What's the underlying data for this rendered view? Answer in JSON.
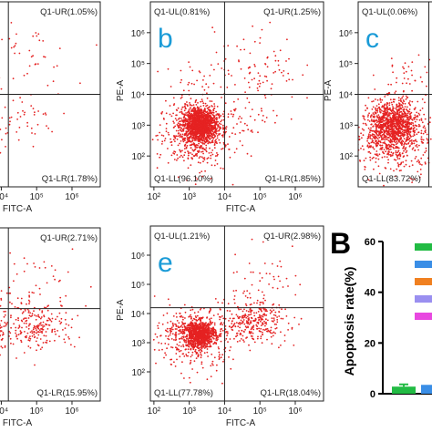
{
  "chart_data": [
    {
      "type": "flow",
      "x_label": "FITC-A",
      "quadrants": {
        "ur": "Q1-UR(1.05%)",
        "lr": "Q1-LR(1.78%)"
      },
      "xlim": [
        1.9,
        6.8
      ],
      "ylim": [
        1,
        7
      ],
      "xticks": [
        {
          "value": 4,
          "label": "10⁴"
        },
        {
          "value": 5,
          "label": "10⁵"
        },
        {
          "value": 6,
          "label": "10⁶"
        }
      ],
      "yticks": [],
      "gate": {
        "x": 4.2,
        "y": 4
      }
    },
    {
      "type": "flow",
      "label": "b",
      "x_label": "FITC-A",
      "y_label": "PE-A",
      "quadrants": {
        "ul": "Q1-UL(0.81%)",
        "ur": "Q1-UR(1.25%)",
        "ll": "Q1-LL(96.10%)",
        "lr": "Q1-LR(1.85%)"
      },
      "xlim": [
        1.9,
        6.8
      ],
      "ylim": [
        1,
        7
      ],
      "xticks": [
        {
          "value": 2,
          "label": "10²"
        },
        {
          "value": 3,
          "label": "10³"
        },
        {
          "value": 4,
          "label": "10⁴"
        },
        {
          "value": 5,
          "label": "10⁵"
        },
        {
          "value": 6,
          "label": "10⁶"
        }
      ],
      "yticks": [
        {
          "value": 2,
          "label": "10²"
        },
        {
          "value": 3,
          "label": "10³"
        },
        {
          "value": 4,
          "label": "10⁴"
        },
        {
          "value": 5,
          "label": "10⁵"
        },
        {
          "value": 6,
          "label": "10⁶"
        }
      ],
      "gate": {
        "x": 4,
        "y": 4
      }
    },
    {
      "type": "flow",
      "label": "c",
      "y_label": "PE-A",
      "quadrants": {
        "ul": "Q1-UL(0.06%)",
        "ll": "Q1-LL(83.72%)"
      },
      "xlim": [
        1.9,
        6.8
      ],
      "ylim": [
        1,
        7
      ],
      "xticks": [],
      "yticks": [
        {
          "value": 2,
          "label": "10²"
        },
        {
          "value": 3,
          "label": "10³"
        },
        {
          "value": 4,
          "label": "10⁴"
        },
        {
          "value": 5,
          "label": "10⁵"
        },
        {
          "value": 6,
          "label": "10⁶"
        }
      ],
      "gate": {
        "x": 3.9,
        "y": 4
      }
    },
    {
      "type": "flow",
      "x_label": "FITC-A",
      "quadrants": {
        "ur": "Q1-UR(2.71%)",
        "lr": "Q1-LR(15.95%)"
      },
      "xlim": [
        1.9,
        6.8
      ],
      "ylim": [
        1,
        7
      ],
      "xticks": [
        {
          "value": 4,
          "label": "10⁴"
        },
        {
          "value": 5,
          "label": "10⁵"
        },
        {
          "value": 6,
          "label": "10⁶"
        }
      ],
      "yticks": [],
      "gate": {
        "x": 4.2,
        "y": 4.2
      }
    },
    {
      "type": "flow",
      "label": "e",
      "x_label": "FITC-A",
      "y_label": "PE-A",
      "quadrants": {
        "ul": "Q1-UL(1.21%)",
        "ur": "Q1-UR(2.98%)",
        "ll": "Q1-LL(77.78%)",
        "lr": "Q1-LR(18.04%)"
      },
      "xlim": [
        1.9,
        6.8
      ],
      "ylim": [
        1,
        7
      ],
      "xticks": [
        {
          "value": 2,
          "label": "10²"
        },
        {
          "value": 3,
          "label": "10³"
        },
        {
          "value": 4,
          "label": "10⁴"
        },
        {
          "value": 5,
          "label": "10⁵"
        },
        {
          "value": 6,
          "label": "10⁶"
        }
      ],
      "yticks": [
        {
          "value": 2,
          "label": "10²"
        },
        {
          "value": 3,
          "label": "10³"
        },
        {
          "value": 4,
          "label": "10⁴"
        },
        {
          "value": 5,
          "label": "10⁵"
        },
        {
          "value": 6,
          "label": "10⁶"
        }
      ],
      "gate": {
        "x": 4,
        "y": 4.2
      }
    },
    {
      "type": "bar",
      "label": "B",
      "y_label": "Apoptosis rate(%)",
      "ylim": [
        0,
        60
      ],
      "yticks": [
        0,
        20,
        40,
        60
      ],
      "series": [
        {
          "color": "#22bb44",
          "values": [
            2.8
          ],
          "errors": [
            0.9
          ]
        },
        {
          "color": "#3a8ee6",
          "values": [
            3.5
          ]
        },
        {
          "color": "#f08020"
        },
        {
          "color": "#9a8ff0"
        },
        {
          "color": "#e848e0"
        }
      ]
    }
  ]
}
